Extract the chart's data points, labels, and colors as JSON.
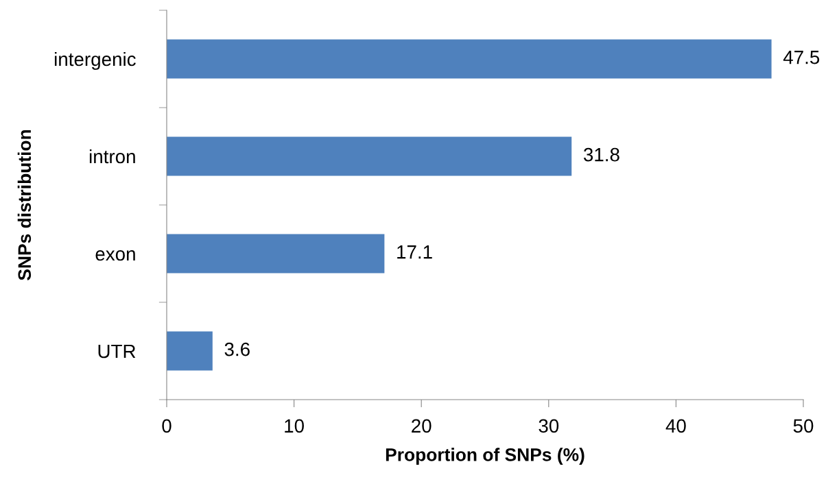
{
  "chart_data": {
    "type": "bar",
    "orientation": "horizontal",
    "xlabel": "Proportion of SNPs (%)",
    "ylabel": "SNPs distribution",
    "categories": [
      "intergenic",
      "intron",
      "exon",
      "UTR"
    ],
    "values": [
      47.5,
      31.8,
      17.1,
      3.6
    ],
    "color": "#4f81bd",
    "xlim": [
      0,
      50
    ],
    "xticks": [
      0,
      10,
      20,
      30,
      40,
      50
    ],
    "grid": false,
    "data_labels": true
  }
}
